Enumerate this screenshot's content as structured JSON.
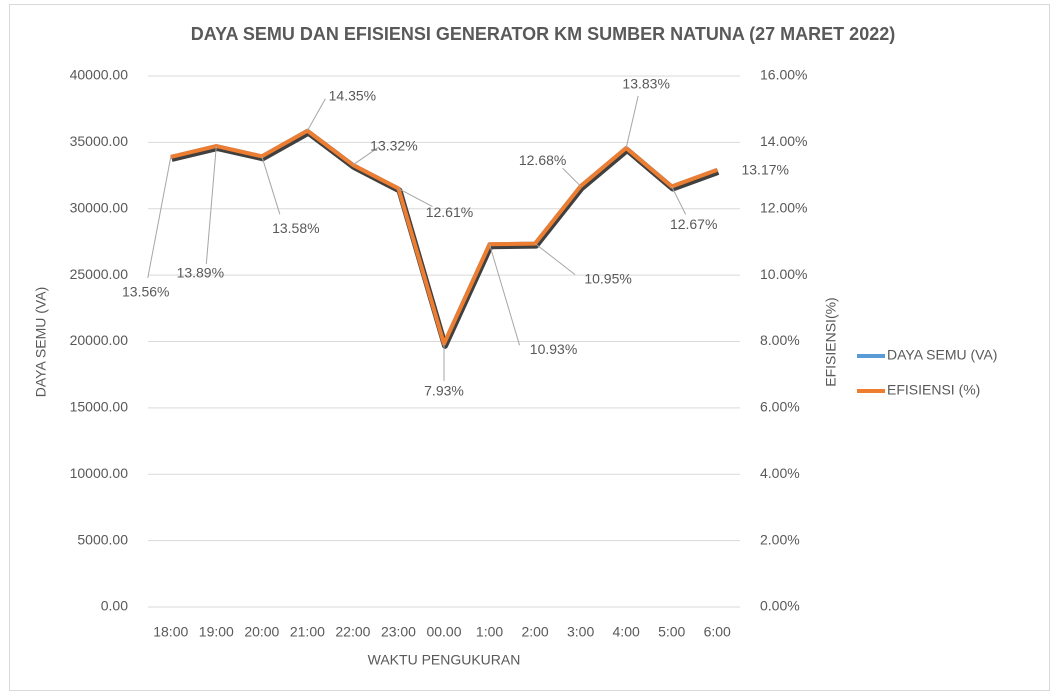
{
  "chart_data": {
    "type": "line",
    "title": "DAYA SEMU DAN EFISIENSI GENERATOR KM SUMBER NATUNA (27 MARET 2022)",
    "x_label": "WAKTU PENGUKURAN",
    "y_label": "DAYA SEMU (VA)",
    "y2_label": "EFISIENSI(%)",
    "categories": [
      "18:00",
      "19:00",
      "20:00",
      "21:00",
      "22:00",
      "23:00",
      "00.00",
      "1:00",
      "2:00",
      "3:00",
      "4:00",
      "5:00",
      "6:00"
    ],
    "ylim": [
      0,
      40000
    ],
    "yticks": [
      {
        "value": 0,
        "label": "0.00"
      },
      {
        "value": 5000,
        "label": "5000.00"
      },
      {
        "value": 10000,
        "label": "10000.00"
      },
      {
        "value": 15000,
        "label": "15000.00"
      },
      {
        "value": 20000,
        "label": "20000.00"
      },
      {
        "value": 25000,
        "label": "25000.00"
      },
      {
        "value": 30000,
        "label": "30000.00"
      },
      {
        "value": 35000,
        "label": "35000.00"
      },
      {
        "value": 40000,
        "label": "40000.00"
      }
    ],
    "y2lim": [
      0,
      16
    ],
    "y2ticks": [
      {
        "value": 0,
        "label": "0.00%"
      },
      {
        "value": 2,
        "label": "2.00%"
      },
      {
        "value": 4,
        "label": "4.00%"
      },
      {
        "value": 6,
        "label": "6.00%"
      },
      {
        "value": 8,
        "label": "8.00%"
      },
      {
        "value": 10,
        "label": "10.00%"
      },
      {
        "value": 12,
        "label": "12.00%"
      },
      {
        "value": 14,
        "label": "14.00%"
      },
      {
        "value": 16,
        "label": "16.00%"
      }
    ],
    "grid": true,
    "legend": "right",
    "series": [
      {
        "name": "DAYA SEMU (VA)",
        "color": "#5b9bd5",
        "values": [
          33900,
          34725,
          33950,
          35875,
          33300,
          31525,
          19825,
          27325,
          27375,
          31700,
          34575,
          31675,
          32925
        ]
      },
      {
        "name": "EFISIENSI (%)",
        "color": "#ed7d31",
        "axis": "y2",
        "values": [
          13.56,
          13.89,
          13.58,
          14.35,
          13.32,
          12.61,
          7.93,
          10.93,
          10.95,
          12.68,
          13.83,
          12.67,
          13.17
        ],
        "value_labels": [
          "13.56%",
          "13.89%",
          "13.58%",
          "14.35%",
          "13.32%",
          "12.61%",
          "7.93%",
          "10.93%",
          "10.95%",
          "12.68%",
          "13.83%",
          "12.67%",
          "13.17%"
        ]
      }
    ]
  }
}
